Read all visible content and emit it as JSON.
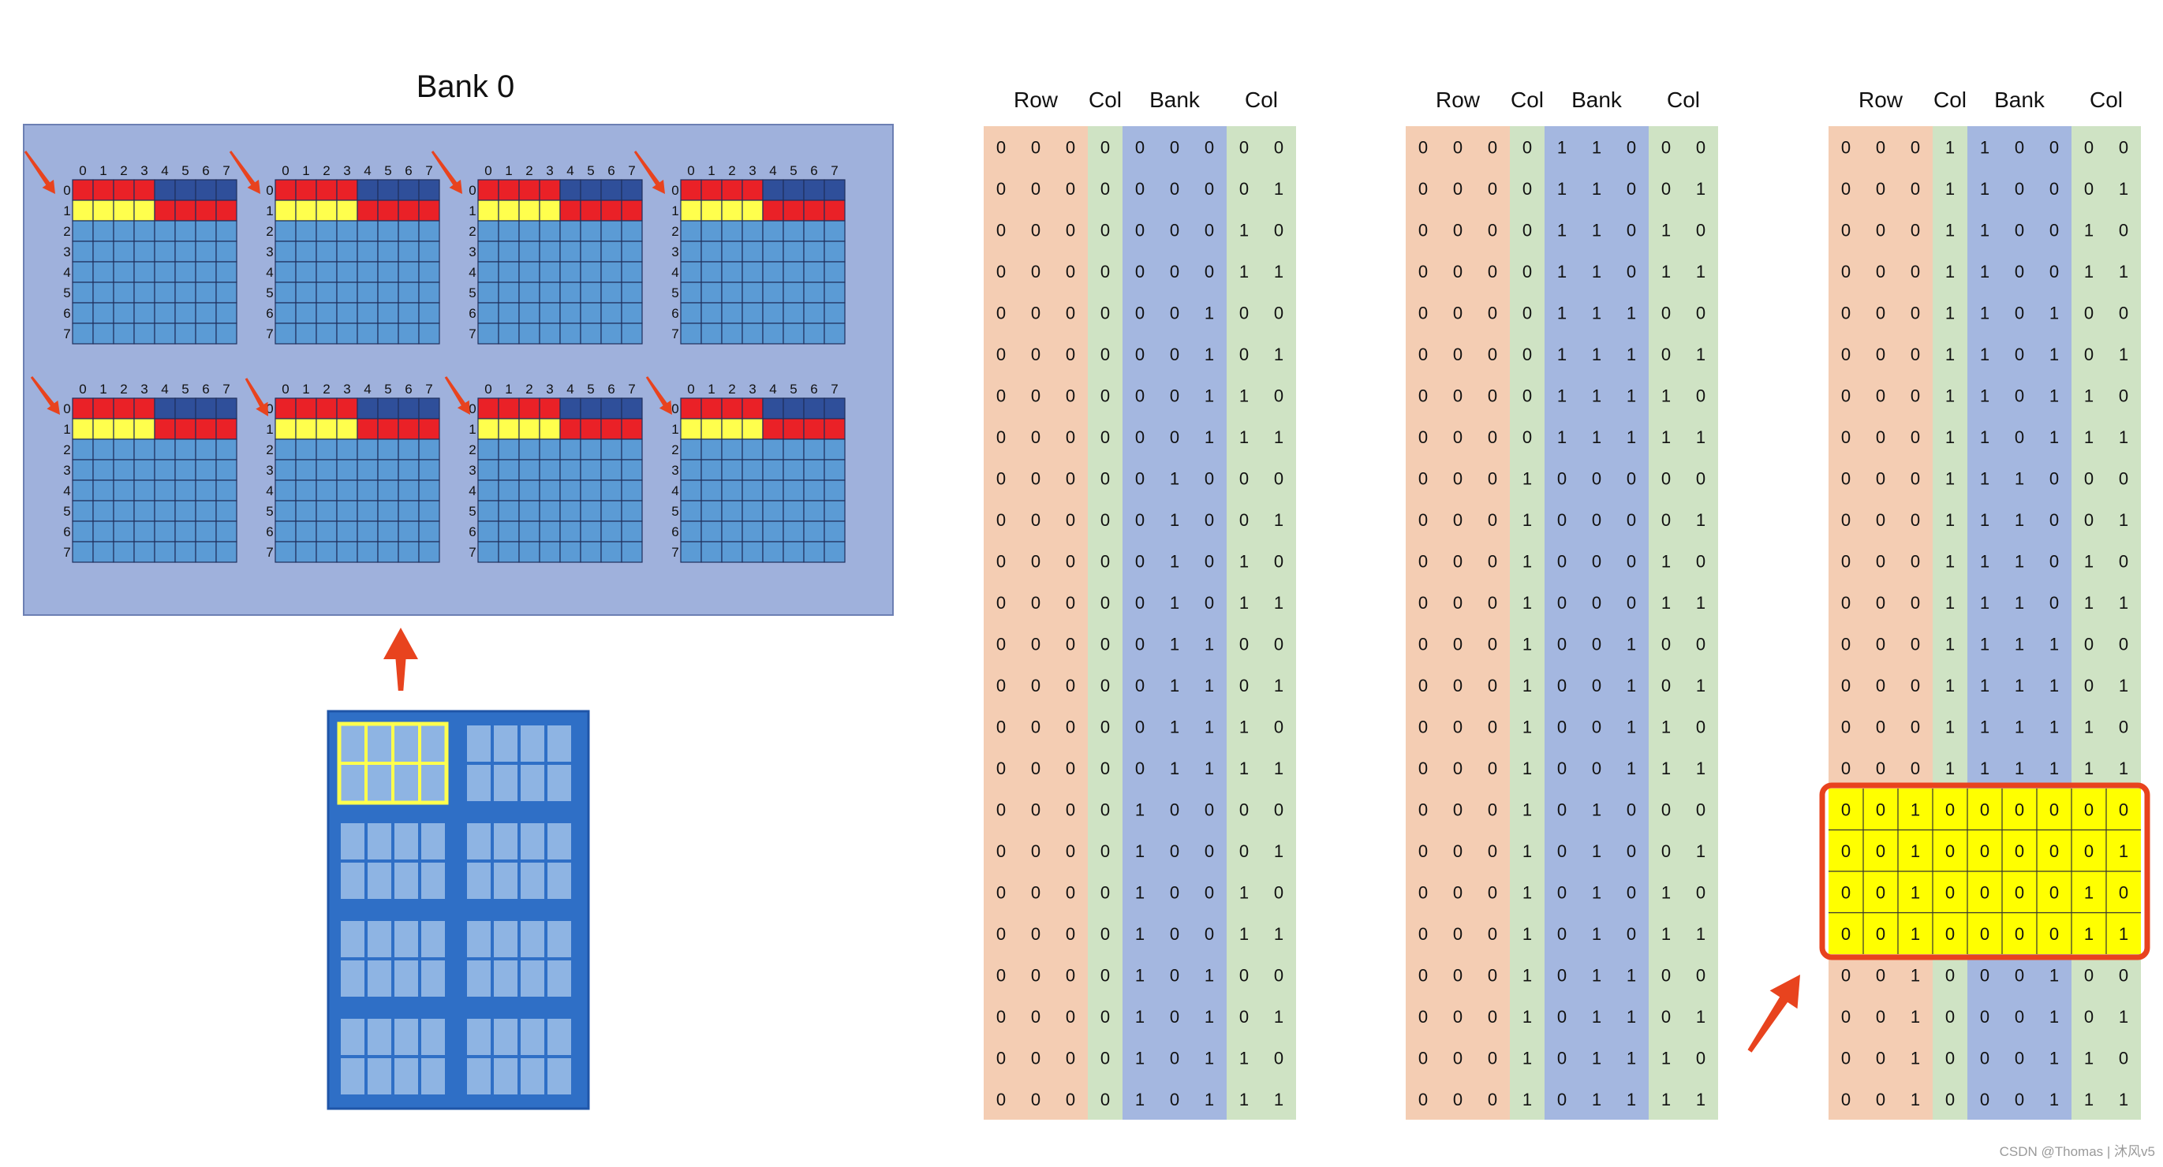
{
  "bank_title": "Bank 0",
  "grid_axis_labels": [
    "0",
    "1",
    "2",
    "3",
    "4",
    "5",
    "6",
    "7"
  ],
  "bit_table_headers": [
    "Row",
    "Col",
    "Bank",
    "Col"
  ],
  "bit_tables": [
    {
      "rows": [
        "000000000",
        "000000001",
        "000000010",
        "000000011",
        "000000100",
        "000000101",
        "000000110",
        "000000111",
        "000001000",
        "000001001",
        "000001010",
        "000001011",
        "000001100",
        "000001101",
        "000001110",
        "000001111",
        "000010000",
        "000010001",
        "000010010",
        "000010011",
        "000010100",
        "000010101",
        "000010110",
        "000010111"
      ]
    },
    {
      "rows": [
        "000011000",
        "000011001",
        "000011010",
        "000011011",
        "000011100",
        "000011101",
        "000011110",
        "000011111",
        "000100000",
        "000100001",
        "000100010",
        "000100011",
        "000100100",
        "000100101",
        "000100110",
        "000100111",
        "000101000",
        "000101001",
        "000101010",
        "000101011",
        "000101100",
        "000101101",
        "000101110",
        "000101111"
      ]
    },
    {
      "rows": [
        "000110000",
        "000110001",
        "000110010",
        "000110011",
        "000110100",
        "000110101",
        "000110110",
        "000110111",
        "000111000",
        "000111001",
        "000111010",
        "000111011",
        "000111100",
        "000111101",
        "000111110",
        "000111111",
        "001000000",
        "001000001",
        "001000010",
        "001000011",
        "001000100",
        "001000101",
        "001000110",
        "001000111"
      ],
      "highlight_rows": [
        16,
        17,
        18,
        19
      ]
    }
  ],
  "colors": {
    "bank_panel": "#9fb1dc",
    "cell_blue": "#5b9bd5",
    "cell_red": "#ea2127",
    "cell_yellow": "#ffff4d",
    "cell_dark_blue": "#2f4f9a",
    "col_row": "#f4cdb3",
    "col_col": "#cfe3c4",
    "col_bank": "#a4b7e0",
    "highlight": "#ffff00",
    "highlight_border": "#e8431e",
    "arrow": "#e8431e",
    "chip_outer": "#2f6fc6",
    "chip_inner": "#8eb4e3",
    "chip_select": "#ffff4d"
  },
  "watermark": "CSDN @Thomas | 沐风v5"
}
